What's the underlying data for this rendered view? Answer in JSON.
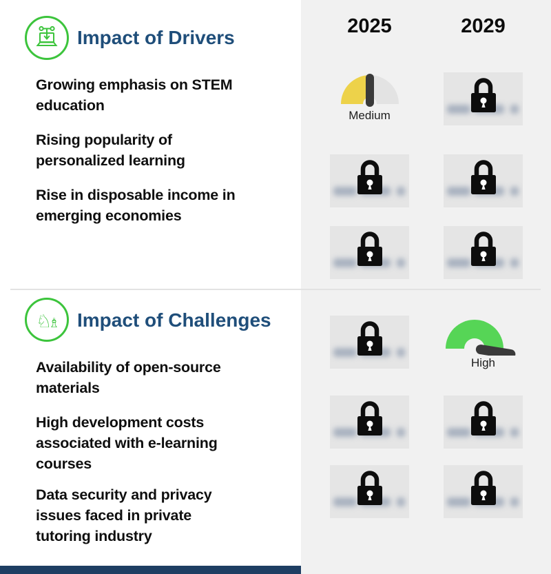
{
  "years": [
    "2025",
    "2029"
  ],
  "sections": [
    {
      "id": "drivers",
      "title": "Impact of Drivers",
      "icon": "network-laptop-icon",
      "items": [
        [
          "Growing emphasis on STEM",
          "education"
        ],
        [
          "Rising popularity of",
          "personalized learning"
        ],
        [
          "Rise in disposable income in",
          "emerging economies"
        ]
      ],
      "grid": [
        {
          "c2025": {
            "type": "gauge",
            "level": "Medium"
          },
          "c2029": {
            "type": "locked"
          }
        },
        {
          "c2025": {
            "type": "locked"
          },
          "c2029": {
            "type": "locked"
          }
        },
        {
          "c2025": {
            "type": "locked"
          },
          "c2029": {
            "type": "locked"
          }
        }
      ]
    },
    {
      "id": "challenges",
      "title": "Impact of Challenges",
      "icon": "chess-pieces-icon",
      "items": [
        [
          "Availability of open-source",
          "materials"
        ],
        [
          "High development costs",
          "associated with e-learning",
          "courses"
        ],
        [
          "Data security and privacy",
          "issues faced in private",
          "tutoring industry"
        ]
      ],
      "grid": [
        {
          "c2025": {
            "type": "locked"
          },
          "c2029": {
            "type": "gauge",
            "level": "High"
          }
        },
        {
          "c2025": {
            "type": "locked"
          },
          "c2029": {
            "type": "locked"
          }
        },
        {
          "c2025": {
            "type": "locked"
          },
          "c2029": {
            "type": "locked"
          }
        }
      ]
    }
  ],
  "gauge_levels": {
    "Medium": {
      "label": "Medium",
      "fill": "half"
    },
    "High": {
      "label": "High",
      "fill": "full"
    }
  },
  "colors": {
    "accent_green": "#3cc43c",
    "gauge_yellow": "#edd24a",
    "gauge_green": "#56d556",
    "gauge_empty": "#e3e3e3",
    "needle": "#3a3a3a",
    "title_navy": "#1f4e7a",
    "panel_gray": "#f1f1f1",
    "locked_cell": "#e5e5e5",
    "footer_navy": "#1e3e63",
    "blurred_text": "#98a4b6"
  }
}
